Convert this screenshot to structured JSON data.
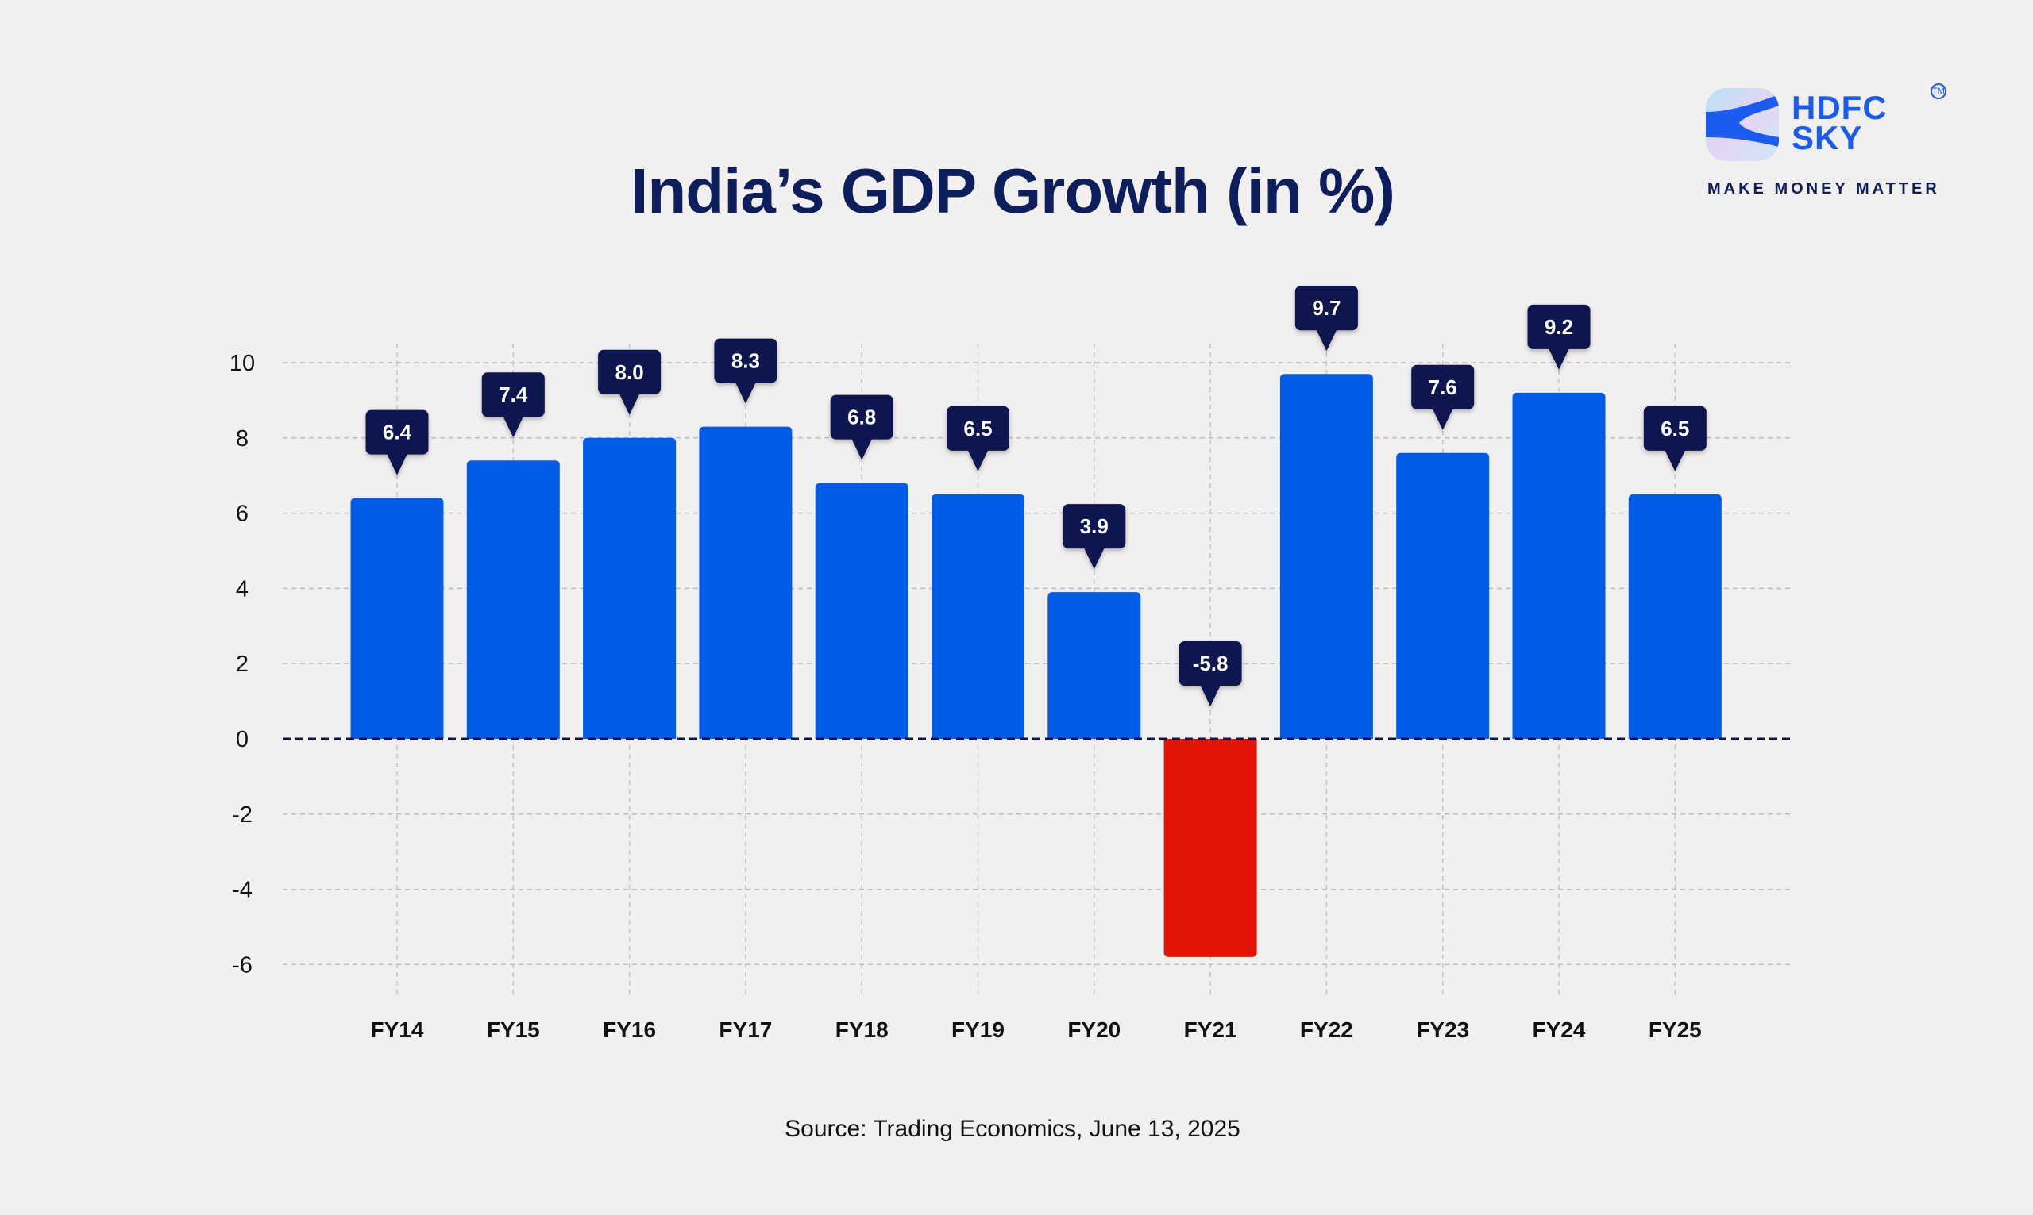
{
  "logo": {
    "brand": "HDFC SKY",
    "line1": "HDFC",
    "line2": "SKY",
    "tm": "TM",
    "tagline": "MAKE MONEY MATTER"
  },
  "source": "Source: Trading Economics, June 13, 2025",
  "colors": {
    "positive": "#005be6",
    "negative": "#e31405",
    "label_bg": "#0b1250",
    "title": "#0c1f5c"
  },
  "chart_data": {
    "type": "bar",
    "title": "India’s GDP Growth (in %)",
    "categories": [
      "FY14",
      "FY15",
      "FY16",
      "FY17",
      "FY18",
      "FY19",
      "FY20",
      "FY21",
      "FY22",
      "FY23",
      "FY24",
      "FY25"
    ],
    "values": [
      6.4,
      7.4,
      8.0,
      8.3,
      6.8,
      6.5,
      3.9,
      -5.8,
      9.7,
      7.6,
      9.2,
      6.5
    ],
    "data_labels": [
      "6.4",
      "7.4",
      "8.0",
      "8.3",
      "6.8",
      "6.5",
      "3.9",
      "-5.8",
      "9.7",
      "7.6",
      "9.2",
      "6.5"
    ],
    "yticks": [
      "10",
      "8",
      "6",
      "4",
      "2",
      "0",
      "-2",
      "-4",
      "-6"
    ],
    "ylim": [
      -6,
      10
    ],
    "xlabel": "",
    "ylabel": "",
    "grid": true,
    "legend": "none"
  }
}
